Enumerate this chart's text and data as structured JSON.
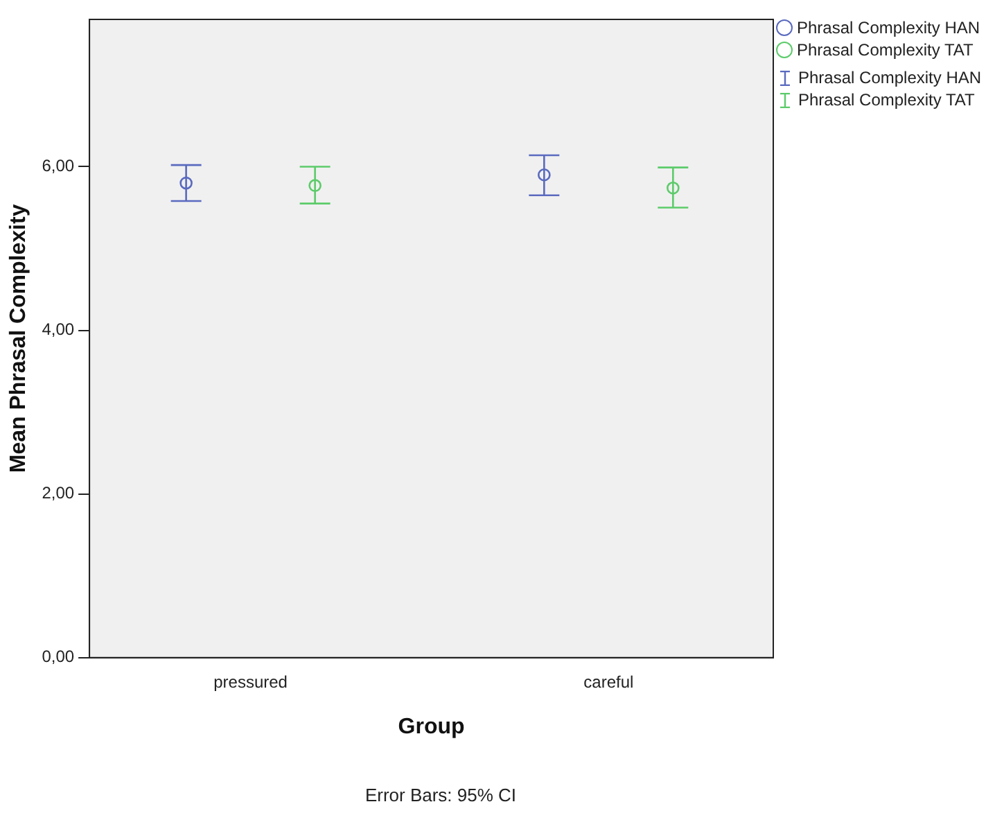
{
  "chart_data": {
    "type": "scatter",
    "xlabel": "Group",
    "ylabel": "Mean Phrasal Complexity",
    "categories": [
      "pressured",
      "careful"
    ],
    "series": [
      {
        "name": "Phrasal Complexity HAN",
        "color": "#5a6abf",
        "values": [
          5.8,
          5.9
        ],
        "errors": [
          [
            5.58,
            6.02
          ],
          [
            5.65,
            6.14
          ]
        ]
      },
      {
        "name": "Phrasal Complexity TAT",
        "color": "#5ccb6a",
        "values": [
          5.77,
          5.74
        ],
        "errors": [
          [
            5.55,
            6.0
          ],
          [
            5.5,
            5.99
          ]
        ]
      }
    ],
    "ylim": [
      0,
      7.8
    ],
    "yticks": [
      {
        "value": 0,
        "label": "0,00"
      },
      {
        "value": 2,
        "label": "2,00"
      },
      {
        "value": 4,
        "label": "4,00"
      },
      {
        "value": 6,
        "label": "6,00"
      }
    ],
    "grid": false,
    "legend": "top right",
    "marker": "circle",
    "annotations": [
      "Error Bars: 95% CI"
    ]
  }
}
